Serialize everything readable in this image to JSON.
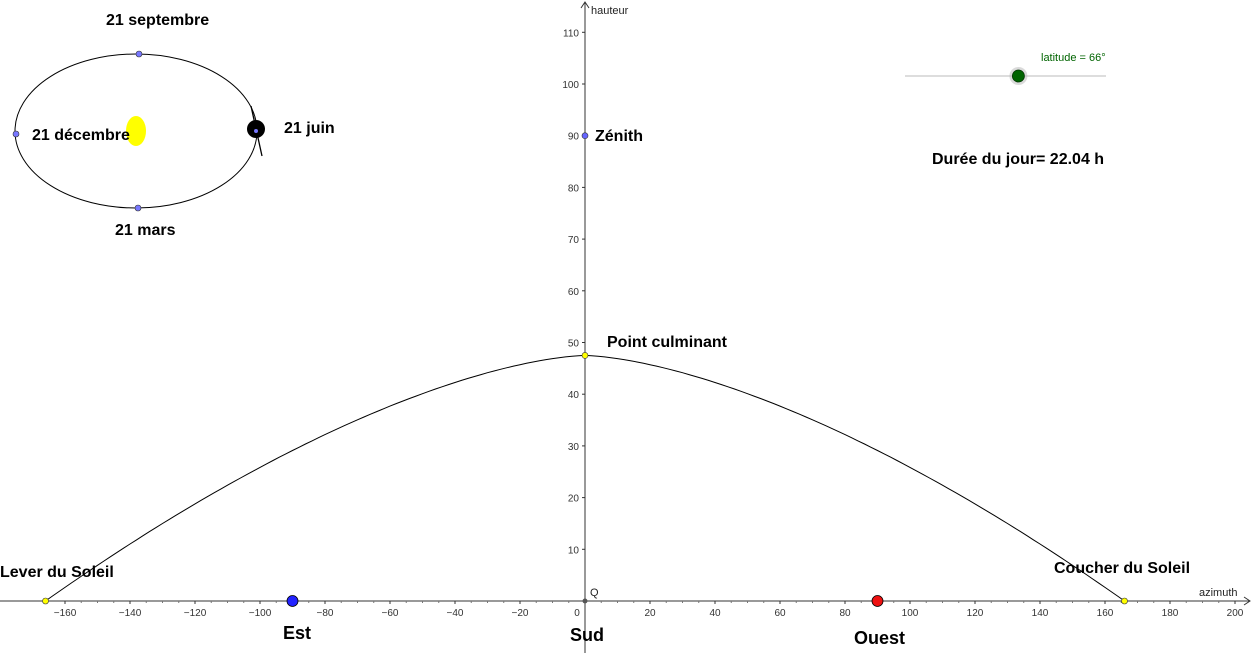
{
  "axes": {
    "x_label": "azimuth",
    "y_label": "hauteur",
    "origin_label": "Q",
    "x_ticks": [
      -160,
      -140,
      -120,
      -100,
      -80,
      -60,
      -40,
      -20,
      0,
      20,
      40,
      60,
      80,
      100,
      120,
      140,
      160,
      180,
      200
    ],
    "y_ticks": [
      10,
      20,
      30,
      40,
      50,
      60,
      70,
      80,
      90,
      100,
      110
    ],
    "x_range": [
      -181,
      206
    ],
    "y_range": [
      -9,
      116
    ]
  },
  "orbit": {
    "label_september": "21 septembre",
    "label_december": "21 décembre",
    "label_june": "21 juin",
    "label_march": "21 mars",
    "sun_color": "#ffff00",
    "earth_color": "#000000",
    "point_color": "#7777ff"
  },
  "slider": {
    "label": "latitude = 66°",
    "value": 66,
    "min": 0,
    "max": 90,
    "color": "#006400"
  },
  "day_length": {
    "text": "Durée du jour= 22.04 h"
  },
  "points": {
    "zenith": {
      "label": "Zénith",
      "azimuth": 0,
      "height": 90,
      "color": "#6666ff"
    },
    "culmination": {
      "label": "Point culminant",
      "azimuth": 0,
      "height": 47.5,
      "color": "#ffff00"
    },
    "sunrise": {
      "label": "Lever du Soleil",
      "azimuth": -166,
      "height": 0,
      "color": "#ffff00"
    },
    "sunset": {
      "label": "Coucher du Soleil",
      "azimuth": 166,
      "height": 0,
      "color": "#ffff00"
    },
    "east": {
      "label": "Est",
      "azimuth": -90,
      "height": 0,
      "color": "#2222ff"
    },
    "west": {
      "label": "Ouest",
      "azimuth": 90,
      "height": 0,
      "color": "#ee1111"
    },
    "south": {
      "label": "Sud",
      "azimuth": 0,
      "height": 0
    }
  },
  "sun_path": {
    "type": "curve",
    "description_points": [
      [
        -166,
        0
      ],
      [
        -140,
        12
      ],
      [
        -120,
        21
      ],
      [
        -100,
        28.5
      ],
      [
        -80,
        35
      ],
      [
        -60,
        40
      ],
      [
        -40,
        44
      ],
      [
        -20,
        46.6
      ],
      [
        0,
        47.5
      ],
      [
        20,
        46.6
      ],
      [
        40,
        44
      ],
      [
        60,
        40
      ],
      [
        80,
        35
      ],
      [
        100,
        28.5
      ],
      [
        120,
        21
      ],
      [
        140,
        12
      ],
      [
        166,
        0
      ]
    ]
  }
}
